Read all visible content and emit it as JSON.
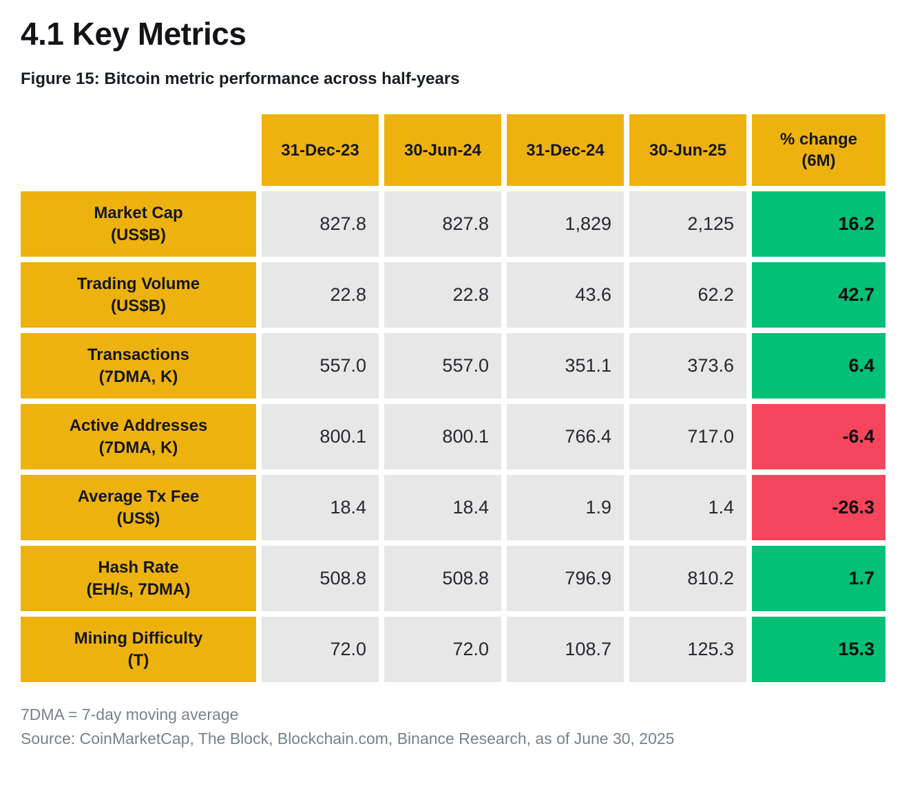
{
  "page": {
    "title": "4.1 Key Metrics",
    "figure_caption": "Figure 15: Bitcoin metric performance across half-years",
    "footnote": "7DMA = 7-day moving average",
    "source": "Source: CoinMarketCap, The Block, Blockchain.com, Binance Research, as of June 30, 2025"
  },
  "colors": {
    "header_gold": "#EEB20E",
    "cell_gray": "#E7E7E8",
    "positive_green": "#02C076",
    "negative_red": "#F6465D",
    "footnote_gray": "#76808F"
  },
  "chart_data": {
    "type": "table",
    "title": "Figure 15: Bitcoin metric performance across half-years",
    "columns": [
      "31-Dec-23",
      "30-Jun-24",
      "31-Dec-24",
      "30-Jun-25",
      "% change\n(6M)"
    ],
    "rows": [
      {
        "label": "Market Cap\n(US$B)",
        "values": [
          "827.8",
          "827.8",
          "1,829",
          "2,125"
        ],
        "change": "16.2",
        "trend": "positive"
      },
      {
        "label": "Trading Volume\n(US$B)",
        "values": [
          "22.8",
          "22.8",
          "43.6",
          "62.2"
        ],
        "change": "42.7",
        "trend": "positive"
      },
      {
        "label": "Transactions\n(7DMA, K)",
        "values": [
          "557.0",
          "557.0",
          "351.1",
          "373.6"
        ],
        "change": "6.4",
        "trend": "positive"
      },
      {
        "label": "Active Addresses\n(7DMA, K)",
        "values": [
          "800.1",
          "800.1",
          "766.4",
          "717.0"
        ],
        "change": "-6.4",
        "trend": "negative"
      },
      {
        "label": "Average Tx Fee\n(US$)",
        "values": [
          "18.4",
          "18.4",
          "1.9",
          "1.4"
        ],
        "change": "-26.3",
        "trend": "negative"
      },
      {
        "label": "Hash Rate\n(EH/s, 7DMA)",
        "values": [
          "508.8",
          "508.8",
          "796.9",
          "810.2"
        ],
        "change": "1.7",
        "trend": "positive"
      },
      {
        "label": "Mining Difficulty\n(T)",
        "values": [
          "72.0",
          "72.0",
          "108.7",
          "125.3"
        ],
        "change": "15.3",
        "trend": "positive"
      }
    ]
  }
}
